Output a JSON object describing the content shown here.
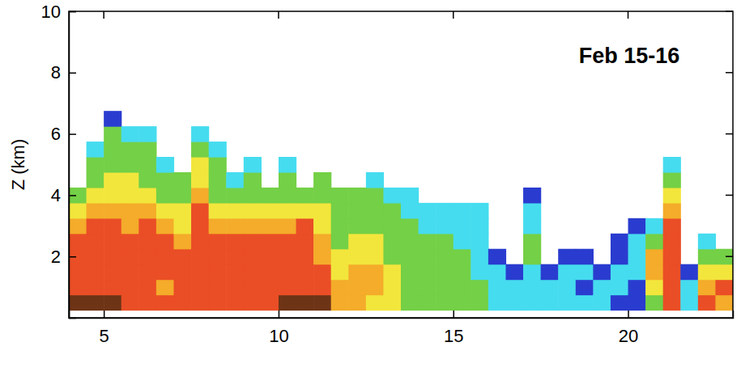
{
  "chart_data": {
    "type": "heatmap",
    "annotation": "Feb 15-16",
    "y_label": "Z (km)",
    "xlim": [
      4,
      23
    ],
    "xticks": [
      5,
      10,
      15,
      20
    ],
    "ylim": [
      0,
      10
    ],
    "yticks": [
      2,
      4,
      6,
      8,
      10
    ],
    "levels": [
      10,
      15,
      20,
      25,
      30,
      35,
      40
    ],
    "colors": [
      "#2a3ccf",
      "#46dcef",
      "#74d046",
      "#f2e63c",
      "#f4ac2a",
      "#ea4e26",
      "#6e3416"
    ],
    "x_edges": [
      4,
      4.5,
      5,
      5.5,
      6,
      6.5,
      7,
      7.5,
      8,
      8.5,
      9,
      9.5,
      10,
      10.5,
      11,
      11.5,
      12,
      12.5,
      13,
      13.5,
      14,
      14.5,
      15,
      15.5,
      16,
      16.5,
      17,
      17.5,
      18,
      18.5,
      19,
      19.5,
      20,
      20.5,
      21,
      21.5,
      22,
      22.5,
      23
    ],
    "y_edges": [
      0.25,
      0.75,
      1.25,
      1.75,
      2.25,
      2.75,
      3.25,
      3.75,
      4.25,
      4.75,
      5.25,
      5.75,
      6.25,
      6.75
    ],
    "cells": [
      [
        40,
        35,
        35,
        35,
        35,
        30,
        25,
        20,
        null,
        null,
        null,
        null,
        null
      ],
      [
        40,
        35,
        35,
        35,
        35,
        35,
        30,
        25,
        20,
        20,
        15,
        null,
        null
      ],
      [
        40,
        35,
        35,
        35,
        35,
        35,
        30,
        25,
        25,
        20,
        20,
        20,
        10
      ],
      [
        35,
        35,
        35,
        35,
        35,
        30,
        30,
        25,
        25,
        20,
        20,
        15,
        null
      ],
      [
        35,
        35,
        35,
        35,
        35,
        35,
        30,
        25,
        20,
        20,
        20,
        15,
        null
      ],
      [
        35,
        30,
        35,
        35,
        35,
        30,
        25,
        20,
        20,
        15,
        null,
        null,
        null
      ],
      [
        35,
        35,
        35,
        35,
        30,
        25,
        25,
        20,
        20,
        null,
        null,
        null,
        null
      ],
      [
        35,
        35,
        35,
        35,
        35,
        35,
        35,
        30,
        25,
        25,
        20,
        15,
        null
      ],
      [
        35,
        35,
        35,
        35,
        35,
        30,
        25,
        20,
        20,
        20,
        15,
        null,
        null
      ],
      [
        35,
        35,
        35,
        35,
        35,
        30,
        25,
        20,
        15,
        null,
        null,
        null,
        null
      ],
      [
        35,
        35,
        35,
        35,
        35,
        30,
        25,
        20,
        20,
        15,
        null,
        null,
        null
      ],
      [
        35,
        35,
        35,
        35,
        35,
        30,
        25,
        20,
        null,
        null,
        null,
        null,
        null
      ],
      [
        40,
        35,
        35,
        35,
        35,
        30,
        25,
        20,
        20,
        15,
        null,
        null,
        null
      ],
      [
        40,
        35,
        35,
        35,
        35,
        35,
        25,
        20,
        null,
        null,
        null,
        null,
        null
      ],
      [
        40,
        35,
        35,
        30,
        30,
        25,
        25,
        20,
        20,
        null,
        null,
        null,
        null
      ],
      [
        30,
        30,
        25,
        25,
        20,
        20,
        20,
        20,
        null,
        null,
        null,
        null,
        null
      ],
      [
        30,
        30,
        30,
        25,
        25,
        20,
        20,
        20,
        null,
        null,
        null,
        null,
        null
      ],
      [
        25,
        30,
        30,
        25,
        25,
        20,
        20,
        20,
        15,
        null,
        null,
        null,
        null
      ],
      [
        25,
        25,
        25,
        20,
        20,
        20,
        20,
        15,
        null,
        null,
        null,
        null,
        null
      ],
      [
        20,
        20,
        20,
        20,
        20,
        20,
        15,
        15,
        null,
        null,
        null,
        null,
        null
      ],
      [
        20,
        20,
        20,
        20,
        20,
        15,
        15,
        null,
        null,
        null,
        null,
        null,
        null
      ],
      [
        20,
        20,
        20,
        20,
        20,
        15,
        15,
        null,
        null,
        null,
        null,
        null,
        null
      ],
      [
        20,
        20,
        20,
        20,
        15,
        15,
        15,
        null,
        null,
        null,
        null,
        null,
        null
      ],
      [
        20,
        20,
        15,
        15,
        15,
        15,
        15,
        null,
        null,
        null,
        null,
        null,
        null
      ],
      [
        15,
        15,
        15,
        10,
        null,
        null,
        null,
        null,
        null,
        null,
        null,
        null,
        null
      ],
      [
        15,
        15,
        10,
        null,
        null,
        null,
        null,
        null,
        null,
        null,
        null,
        null,
        null
      ],
      [
        15,
        15,
        15,
        20,
        20,
        15,
        15,
        10,
        null,
        null,
        null,
        null,
        null
      ],
      [
        15,
        15,
        10,
        null,
        null,
        null,
        null,
        null,
        null,
        null,
        null,
        null,
        null
      ],
      [
        15,
        15,
        15,
        10,
        null,
        null,
        null,
        null,
        null,
        null,
        null,
        null,
        null
      ],
      [
        15,
        10,
        15,
        10,
        null,
        null,
        null,
        null,
        null,
        null,
        null,
        null,
        null
      ],
      [
        15,
        15,
        10,
        null,
        null,
        null,
        null,
        null,
        null,
        null,
        null,
        null,
        null
      ],
      [
        10,
        15,
        15,
        10,
        10,
        null,
        null,
        null,
        null,
        null,
        null,
        null,
        null
      ],
      [
        10,
        10,
        15,
        15,
        15,
        10,
        null,
        null,
        null,
        null,
        null,
        null,
        null
      ],
      [
        20,
        25,
        30,
        30,
        20,
        15,
        null,
        null,
        null,
        null,
        null,
        null,
        null
      ],
      [
        35,
        35,
        35,
        35,
        35,
        35,
        30,
        25,
        20,
        15,
        null,
        null,
        null
      ],
      [
        15,
        15,
        10,
        null,
        null,
        null,
        null,
        null,
        null,
        null,
        null,
        null,
        null
      ],
      [
        35,
        30,
        25,
        20,
        15,
        null,
        null,
        null,
        null,
        null,
        null,
        null,
        null
      ],
      [
        30,
        35,
        25,
        20,
        null,
        null,
        null,
        null,
        null,
        null,
        null,
        null,
        null
      ]
    ]
  }
}
